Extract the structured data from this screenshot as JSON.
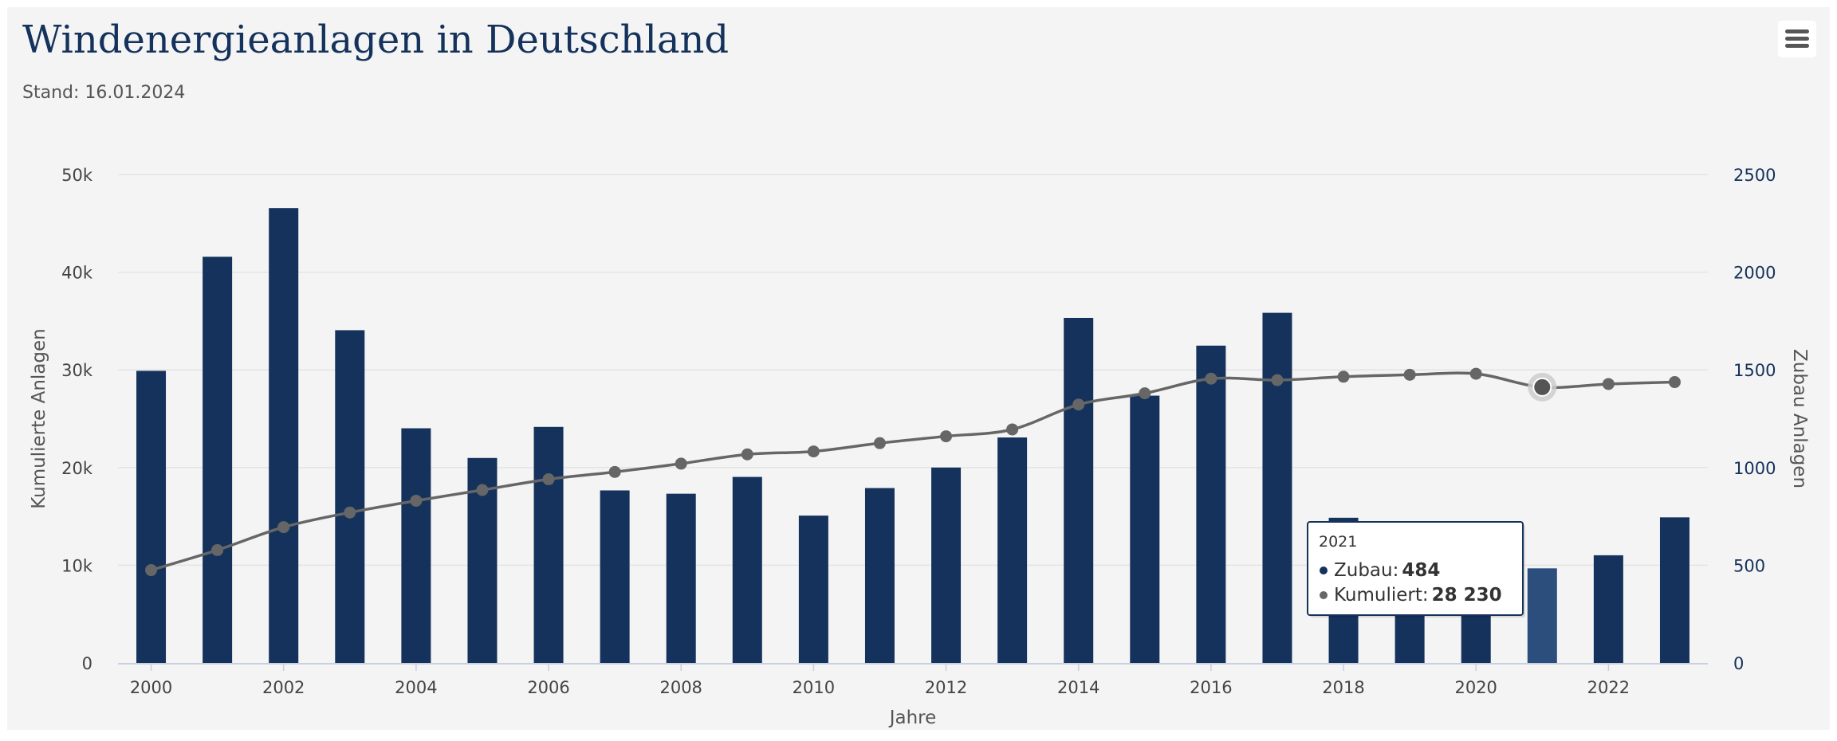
{
  "title": "Windenergieanlagen in Deutschland",
  "subtitle": "Stand: 16.01.2024",
  "menu": {
    "icon": "hamburger-menu-icon"
  },
  "colors": {
    "background": "#f4f4f4",
    "title": "#14325b",
    "bar": "#14325b",
    "bar_hover": "#2b4e7d",
    "line": "#666666",
    "grid": "#e4e4e4"
  },
  "chart_data": {
    "type": "bar",
    "categories": [
      2000,
      2001,
      2002,
      2003,
      2004,
      2005,
      2006,
      2007,
      2008,
      2009,
      2010,
      2011,
      2012,
      2013,
      2014,
      2015,
      2016,
      2017,
      2018,
      2019,
      2020,
      2021,
      2022,
      2023
    ],
    "x_tick_labels": [
      "2000",
      "2002",
      "2004",
      "2006",
      "2008",
      "2010",
      "2012",
      "2014",
      "2016",
      "2018",
      "2020",
      "2022"
    ],
    "xlabel": "Jahre",
    "y_left": {
      "label": "Kumulierte Anlagen",
      "range": [
        0,
        50000
      ],
      "ticks": [
        "0",
        "10k",
        "20k",
        "30k",
        "40k",
        "50k"
      ]
    },
    "y_right": {
      "label": "Zubau Anlagen",
      "range": [
        0,
        2500
      ],
      "ticks": [
        "0",
        "500",
        "1000",
        "1500",
        "2000",
        "2500"
      ]
    },
    "grid": true,
    "legend": false,
    "series": [
      {
        "name": "Zubau",
        "type": "column",
        "axis": "right",
        "values": [
          1495,
          2079,
          2328,
          1703,
          1201,
          1049,
          1208,
          883,
          866,
          952,
          754,
          895,
          1000,
          1154,
          1766,
          1368,
          1624,
          1792,
          743,
          325,
          420,
          484,
          551,
          745
        ]
      },
      {
        "name": "Kumuliert",
        "type": "spline",
        "axis": "left",
        "values": [
          9500,
          11550,
          13900,
          15400,
          16600,
          17700,
          18800,
          19550,
          20400,
          21350,
          21650,
          22500,
          23200,
          23900,
          26450,
          27600,
          29100,
          28950,
          29300,
          29500,
          29600,
          28230,
          28550,
          28750
        ]
      }
    ],
    "tooltip": {
      "category": "2021",
      "rows": [
        {
          "label": "Zubau",
          "value": "484"
        },
        {
          "label": "Kumuliert",
          "value": "28 230"
        }
      ]
    }
  }
}
